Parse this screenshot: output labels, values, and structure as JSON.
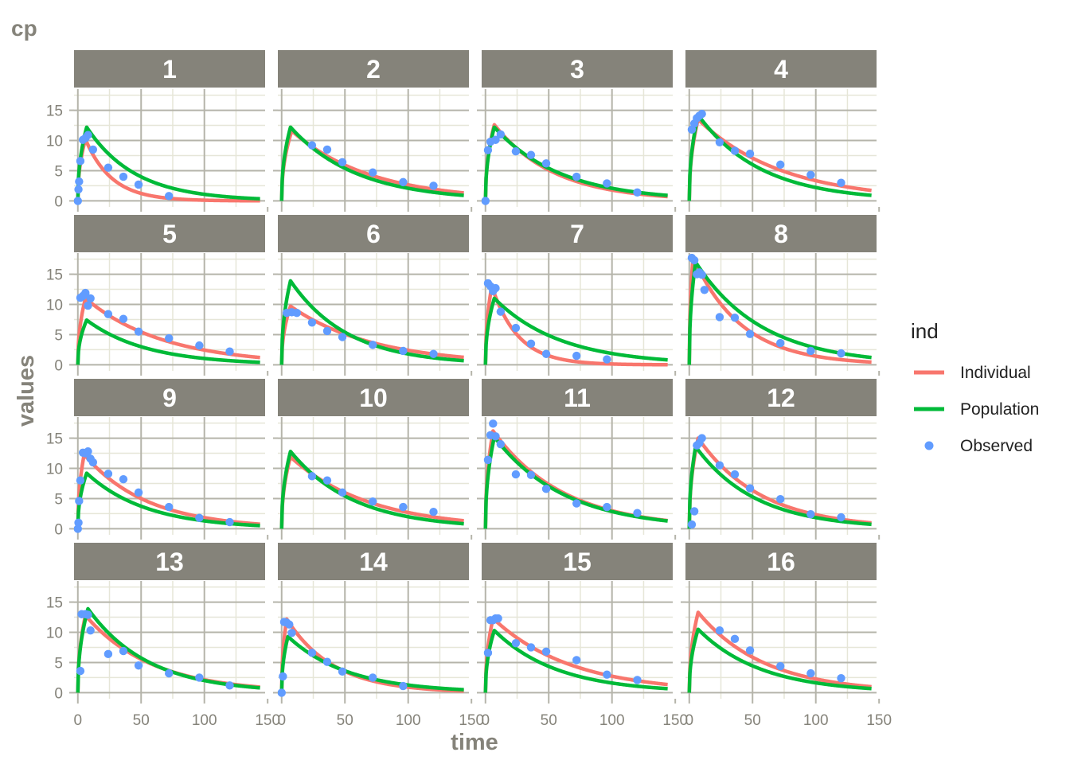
{
  "chart_data": {
    "type": "line",
    "title": "cp",
    "xlabel": "time",
    "ylabel": "values",
    "xlim": [
      -3,
      148
    ],
    "ylim": [
      -1,
      18.5
    ],
    "x_ticks": [
      0,
      50,
      100,
      150
    ],
    "x_tick_labels": [
      "0",
      "50",
      "100",
      "150"
    ],
    "y_ticks": [
      0,
      5,
      10,
      15
    ],
    "y_tick_labels": [
      "0",
      "5",
      "10",
      "15"
    ],
    "grid": true,
    "legend": {
      "title": "ind",
      "position": "right",
      "entries": [
        {
          "label": "Individual",
          "kind": "line",
          "color": "#F8766D"
        },
        {
          "label": "Population",
          "kind": "line",
          "color": "#00BA38"
        },
        {
          "label": "Observed",
          "kind": "point",
          "color": "#619CFF"
        }
      ]
    },
    "colors": {
      "individual": "#F8766D",
      "population": "#00BA38",
      "observed": "#619CFF",
      "strip": "#85837a",
      "panel_bg": "#ffffff",
      "grid_major": "#b5b4aa",
      "grid_minor": "#e6e6d8"
    },
    "panels": [
      {
        "label": "1",
        "individual": {
          "peak": 10.2,
          "tpeak": 6,
          "k": 0.048
        },
        "population": {
          "peak": 12.2,
          "tpeak": 7,
          "k": 0.026
        },
        "observed": [
          [
            0,
            0
          ],
          [
            0.5,
            1.9
          ],
          [
            1,
            3.2
          ],
          [
            2,
            6.6
          ],
          [
            4,
            10.1
          ],
          [
            6,
            10.4
          ],
          [
            8,
            10.9
          ],
          [
            12,
            8.5
          ],
          [
            24,
            5.5
          ],
          [
            36,
            4.0
          ],
          [
            48,
            2.7
          ],
          [
            72,
            0.8
          ]
        ]
      },
      {
        "label": "2",
        "individual": {
          "peak": 11.6,
          "tpeak": 8,
          "k": 0.016
        },
        "population": {
          "peak": 12.2,
          "tpeak": 7,
          "k": 0.019
        },
        "observed": [
          [
            24,
            9.2
          ],
          [
            36,
            8.5
          ],
          [
            48,
            6.4
          ],
          [
            72,
            4.7
          ],
          [
            96,
            3.1
          ],
          [
            120,
            2.5
          ]
        ]
      },
      {
        "label": "3",
        "individual": {
          "peak": 12.6,
          "tpeak": 7,
          "k": 0.021
        },
        "population": {
          "peak": 12.2,
          "tpeak": 7,
          "k": 0.019
        },
        "observed": [
          [
            0,
            0
          ],
          [
            2,
            8.4
          ],
          [
            4,
            9.8
          ],
          [
            8,
            10.1
          ],
          [
            12,
            11.0
          ],
          [
            24,
            8.2
          ],
          [
            36,
            7.6
          ],
          [
            48,
            6.2
          ],
          [
            72,
            4.0
          ],
          [
            96,
            2.9
          ],
          [
            120,
            1.4
          ]
        ]
      },
      {
        "label": "4",
        "individual": {
          "peak": 13.5,
          "tpeak": 7,
          "k": 0.015
        },
        "population": {
          "peak": 14.2,
          "tpeak": 7,
          "k": 0.02
        },
        "observed": [
          [
            2,
            11.8
          ],
          [
            4,
            12.8
          ],
          [
            6,
            13.7
          ],
          [
            8,
            14.1
          ],
          [
            10,
            14.4
          ],
          [
            24,
            9.7
          ],
          [
            36,
            8.3
          ],
          [
            48,
            7.8
          ],
          [
            72,
            6.0
          ],
          [
            96,
            4.3
          ],
          [
            120,
            3.0
          ]
        ]
      },
      {
        "label": "5",
        "individual": {
          "peak": 11.0,
          "tpeak": 6,
          "k": 0.016
        },
        "population": {
          "peak": 7.4,
          "tpeak": 7,
          "k": 0.021
        },
        "observed": [
          [
            2,
            11.1
          ],
          [
            4,
            11.4
          ],
          [
            6,
            11.9
          ],
          [
            8,
            9.8
          ],
          [
            10,
            11.0
          ],
          [
            24,
            8.4
          ],
          [
            36,
            7.6
          ],
          [
            48,
            5.5
          ],
          [
            72,
            4.4
          ],
          [
            96,
            3.2
          ],
          [
            120,
            2.2
          ]
        ]
      },
      {
        "label": "6",
        "individual": {
          "peak": 9.7,
          "tpeak": 7,
          "k": 0.015
        },
        "population": {
          "peak": 13.9,
          "tpeak": 7,
          "k": 0.022
        },
        "observed": [
          [
            4,
            8.6
          ],
          [
            8,
            8.7
          ],
          [
            12,
            8.6
          ],
          [
            24,
            7.0
          ],
          [
            36,
            5.6
          ],
          [
            48,
            4.6
          ],
          [
            72,
            3.3
          ],
          [
            96,
            2.3
          ],
          [
            120,
            1.8
          ]
        ]
      },
      {
        "label": "7",
        "individual": {
          "peak": 13.0,
          "tpeak": 5,
          "k": 0.048
        },
        "population": {
          "peak": 11.0,
          "tpeak": 7,
          "k": 0.019
        },
        "observed": [
          [
            2,
            13.5
          ],
          [
            4,
            13.0
          ],
          [
            6,
            12.2
          ],
          [
            8,
            12.7
          ],
          [
            12,
            8.8
          ],
          [
            24,
            6.1
          ],
          [
            36,
            3.5
          ],
          [
            48,
            1.8
          ],
          [
            72,
            1.5
          ],
          [
            96,
            0.9
          ]
        ]
      },
      {
        "label": "8",
        "individual": {
          "peak": 17.8,
          "tpeak": 3,
          "k": 0.026
        },
        "population": {
          "peak": 17.0,
          "tpeak": 5,
          "k": 0.019
        },
        "observed": [
          [
            2,
            17.7
          ],
          [
            4,
            17.3
          ],
          [
            6,
            15.0
          ],
          [
            8,
            15.3
          ],
          [
            10,
            14.9
          ],
          [
            12,
            12.4
          ],
          [
            24,
            7.9
          ],
          [
            36,
            7.8
          ],
          [
            48,
            5.1
          ],
          [
            72,
            3.6
          ],
          [
            96,
            2.3
          ],
          [
            120,
            1.9
          ]
        ]
      },
      {
        "label": "9",
        "individual": {
          "peak": 12.3,
          "tpeak": 5,
          "k": 0.02
        },
        "population": {
          "peak": 9.2,
          "tpeak": 7,
          "k": 0.021
        },
        "observed": [
          [
            0,
            0
          ],
          [
            0.5,
            1.0
          ],
          [
            1,
            4.6
          ],
          [
            2,
            8.0
          ],
          [
            4,
            12.6
          ],
          [
            6,
            12.5
          ],
          [
            8,
            12.8
          ],
          [
            10,
            11.6
          ],
          [
            12,
            11.0
          ],
          [
            24,
            9.1
          ],
          [
            36,
            8.2
          ],
          [
            48,
            6.0
          ],
          [
            72,
            3.6
          ],
          [
            96,
            1.8
          ],
          [
            120,
            1.1
          ]
        ]
      },
      {
        "label": "10",
        "individual": {
          "peak": 11.9,
          "tpeak": 7,
          "k": 0.016
        },
        "population": {
          "peak": 12.8,
          "tpeak": 7,
          "k": 0.02
        },
        "observed": [
          [
            24,
            8.7
          ],
          [
            36,
            8.0
          ],
          [
            48,
            6.0
          ],
          [
            72,
            4.5
          ],
          [
            96,
            3.6
          ],
          [
            120,
            2.8
          ]
        ]
      },
      {
        "label": "11",
        "individual": {
          "peak": 16.2,
          "tpeak": 6,
          "k": 0.018
        },
        "population": {
          "peak": 15.2,
          "tpeak": 7,
          "k": 0.018
        },
        "observed": [
          [
            2,
            11.4
          ],
          [
            4,
            15.5
          ],
          [
            6,
            17.4
          ],
          [
            8,
            15.3
          ],
          [
            12,
            14.0
          ],
          [
            24,
            9.0
          ],
          [
            36,
            8.9
          ],
          [
            48,
            6.6
          ],
          [
            72,
            4.2
          ],
          [
            96,
            3.6
          ],
          [
            120,
            2.6
          ]
        ]
      },
      {
        "label": "12",
        "individual": {
          "peak": 15.0,
          "tpeak": 7,
          "k": 0.02
        },
        "population": {
          "peak": 13.6,
          "tpeak": 5,
          "k": 0.021
        },
        "observed": [
          [
            2,
            0.7
          ],
          [
            4,
            2.9
          ],
          [
            6,
            13.8
          ],
          [
            8,
            14.2
          ],
          [
            10,
            15.0
          ],
          [
            24,
            10.5
          ],
          [
            36,
            9.0
          ],
          [
            48,
            6.7
          ],
          [
            72,
            4.9
          ],
          [
            96,
            2.4
          ],
          [
            120,
            1.9
          ]
        ]
      },
      {
        "label": "13",
        "individual": {
          "peak": 12.8,
          "tpeak": 6,
          "k": 0.019
        },
        "population": {
          "peak": 13.9,
          "tpeak": 8,
          "k": 0.021
        },
        "observed": [
          [
            2,
            3.6
          ],
          [
            3,
            13.0
          ],
          [
            6,
            13.0
          ],
          [
            8,
            12.9
          ],
          [
            10,
            10.3
          ],
          [
            24,
            6.4
          ],
          [
            36,
            6.9
          ],
          [
            48,
            4.5
          ],
          [
            72,
            3.2
          ],
          [
            96,
            2.5
          ],
          [
            120,
            1.2
          ]
        ]
      },
      {
        "label": "14",
        "individual": {
          "peak": 12.2,
          "tpeak": 4,
          "k": 0.027
        },
        "population": {
          "peak": 9.3,
          "tpeak": 5,
          "k": 0.021
        },
        "observed": [
          [
            0,
            0
          ],
          [
            1,
            2.7
          ],
          [
            2,
            11.7
          ],
          [
            4,
            11.6
          ],
          [
            6,
            11.3
          ],
          [
            8,
            9.9
          ],
          [
            24,
            6.6
          ],
          [
            36,
            5.1
          ],
          [
            48,
            3.5
          ],
          [
            72,
            2.5
          ],
          [
            96,
            1.1
          ]
        ]
      },
      {
        "label": "15",
        "individual": {
          "peak": 12.3,
          "tpeak": 6,
          "k": 0.016
        },
        "population": {
          "peak": 10.3,
          "tpeak": 7,
          "k": 0.02
        },
        "observed": [
          [
            2,
            6.6
          ],
          [
            4,
            12.0
          ],
          [
            6,
            12.0
          ],
          [
            8,
            12.3
          ],
          [
            10,
            12.3
          ],
          [
            24,
            8.2
          ],
          [
            36,
            7.5
          ],
          [
            48,
            6.8
          ],
          [
            72,
            5.4
          ],
          [
            96,
            3.0
          ],
          [
            120,
            2.1
          ]
        ]
      },
      {
        "label": "16",
        "individual": {
          "peak": 13.3,
          "tpeak": 7,
          "k": 0.019
        },
        "population": {
          "peak": 10.5,
          "tpeak": 7,
          "k": 0.02
        },
        "observed": [
          [
            24,
            10.3
          ],
          [
            36,
            8.9
          ],
          [
            48,
            7.0
          ],
          [
            72,
            4.4
          ],
          [
            96,
            3.2
          ],
          [
            120,
            2.4
          ]
        ]
      }
    ]
  }
}
